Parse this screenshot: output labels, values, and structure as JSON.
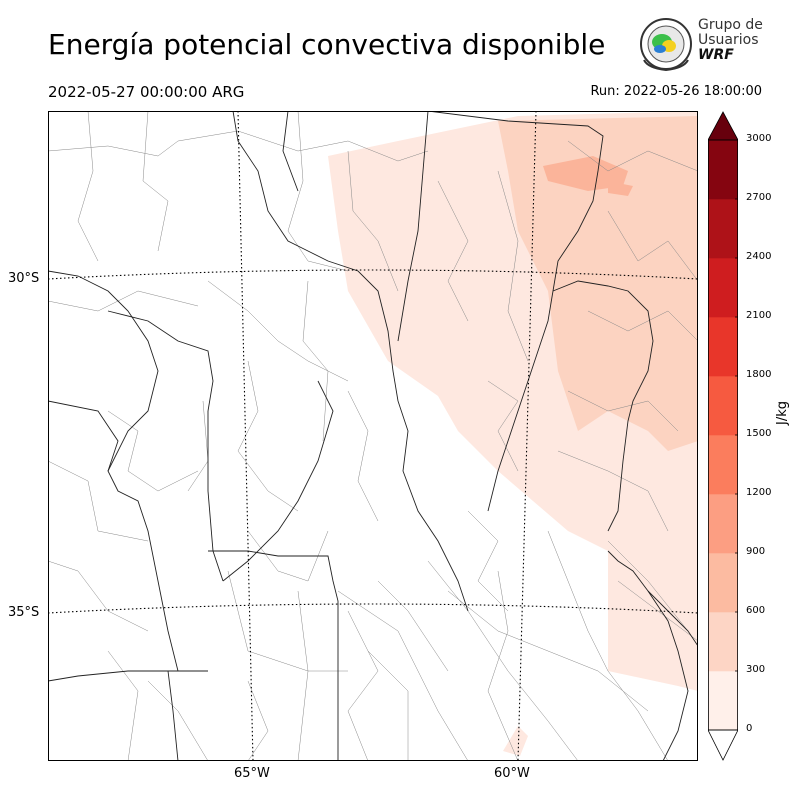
{
  "header": {
    "title": "Energía potencial convectiva disponible",
    "valid_time": "2022-05-27 00:00:00 ARG",
    "run_time": "Run: 2022-05-26 18:00:00"
  },
  "logo": {
    "line1": "Grupo de",
    "line2": "Usuarios",
    "line3": "WRF"
  },
  "map": {
    "lat_labels": [
      "30°S",
      "35°S"
    ],
    "lon_labels": [
      "65°W",
      "60°W"
    ],
    "fill_colors": {
      "low": "#fee8e0",
      "mid": "#fcd3c1",
      "high": "#fbb49a"
    }
  },
  "colorbar": {
    "unit": "J/kg",
    "ticks": [
      "0",
      "300",
      "600",
      "900",
      "1200",
      "1500",
      "1800",
      "2100",
      "2400",
      "2700",
      "3000"
    ],
    "colors": [
      "#fff0ea",
      "#fdd5c5",
      "#fcbba1",
      "#fc9e82",
      "#fb7d5d",
      "#f65a40",
      "#e8362a",
      "#cf1d1f",
      "#ae1218",
      "#850510"
    ],
    "over_color": "#67000d"
  }
}
